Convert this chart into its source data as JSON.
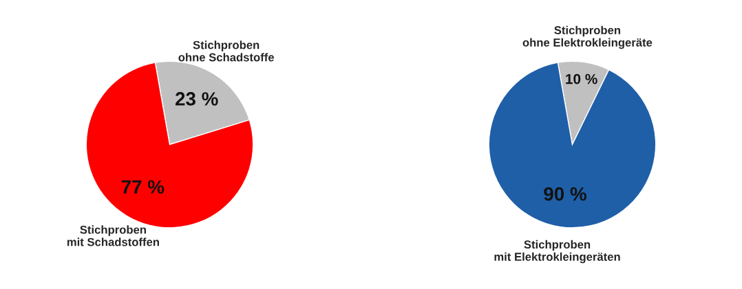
{
  "chart_data": [
    {
      "type": "pie",
      "categories": [
        "Stichproben\nohne Schadstoffe",
        "Stichproben\nmit Schadstoffen"
      ],
      "values": [
        23,
        77
      ],
      "colors": [
        "#c0c0c0",
        "#ff0000"
      ],
      "value_labels": [
        "23 %",
        "77 %"
      ]
    },
    {
      "type": "pie",
      "categories": [
        "Stichproben\nohne Elektrokleingeräte",
        "Stichproben\nmit Elektrokleingeräten"
      ],
      "values": [
        10,
        90
      ],
      "colors": [
        "#c0c0c0",
        "#1f5fa8"
      ],
      "value_labels": [
        "10 %",
        "90 %"
      ]
    }
  ]
}
